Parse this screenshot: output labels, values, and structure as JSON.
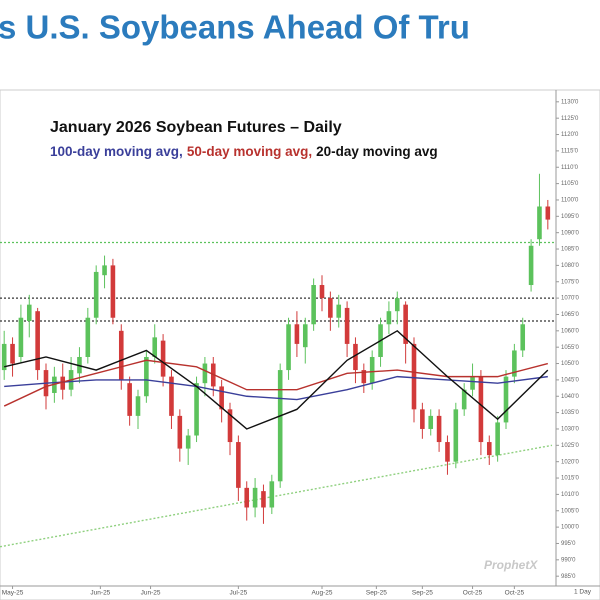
{
  "chart_data": {
    "type": "candlestick",
    "header": "s U.S. Soybeans Ahead Of Tru",
    "title": "January 2026 Soybean Futures – Daily",
    "watermark": "ProphetX",
    "interval_label": "1 Day",
    "up_color": "#5cc25c",
    "down_color": "#d23a3a",
    "xlim": [
      -0.5,
      65.5
    ],
    "ylim": [
      982,
      1133
    ],
    "xticks": [
      {
        "value": 1,
        "label": "May-25"
      },
      {
        "value": 11.5,
        "label": "Jun-25"
      },
      {
        "value": 17.5,
        "label": "Jun-25"
      },
      {
        "value": 28,
        "label": "Jul-25"
      },
      {
        "value": 38,
        "label": "Aug-25"
      },
      {
        "value": 44.5,
        "label": "Sep-25"
      },
      {
        "value": 50,
        "label": "Sep-25"
      },
      {
        "value": 56,
        "label": "Oct-25"
      },
      {
        "value": 61,
        "label": "Oct-25"
      }
    ],
    "yticks": [
      {
        "value": 985,
        "label": "985'0"
      },
      {
        "value": 990,
        "label": "990'0"
      },
      {
        "value": 995,
        "label": "995'0"
      },
      {
        "value": 1000,
        "label": "1000'0"
      },
      {
        "value": 1005,
        "label": "1005'0"
      },
      {
        "value": 1010,
        "label": "1010'0"
      },
      {
        "value": 1015,
        "label": "1015'0"
      },
      {
        "value": 1020,
        "label": "1020'0"
      },
      {
        "value": 1025,
        "label": "1025'0"
      },
      {
        "value": 1030,
        "label": "1030'0"
      },
      {
        "value": 1035,
        "label": "1035'0"
      },
      {
        "value": 1040,
        "label": "1040'0"
      },
      {
        "value": 1045,
        "label": "1045'0"
      },
      {
        "value": 1050,
        "label": "1050'0"
      },
      {
        "value": 1055,
        "label": "1055'0"
      },
      {
        "value": 1060,
        "label": "1060'0"
      },
      {
        "value": 1065,
        "label": "1065'0"
      },
      {
        "value": 1070,
        "label": "1070'0"
      },
      {
        "value": 1075,
        "label": "1075'0"
      },
      {
        "value": 1080,
        "label": "1080'0"
      },
      {
        "value": 1085,
        "label": "1085'0"
      },
      {
        "value": 1090,
        "label": "1090'0"
      },
      {
        "value": 1095,
        "label": "1095'0"
      },
      {
        "value": 1100,
        "label": "1100'0"
      },
      {
        "value": 1105,
        "label": "1105'0"
      },
      {
        "value": 1110,
        "label": "1110'0"
      },
      {
        "value": 1115,
        "label": "1115'0"
      },
      {
        "value": 1120,
        "label": "1120'0"
      },
      {
        "value": 1125,
        "label": "1125'0"
      },
      {
        "value": 1130,
        "label": "1130'0"
      }
    ],
    "open": [
      1048,
      1056,
      1052,
      1063,
      1066,
      1048,
      1041,
      1046,
      1042,
      1047,
      1052,
      1064,
      1077,
      1080,
      1060,
      1044,
      1034,
      1040,
      1052,
      1057,
      1046,
      1034,
      1024,
      1028,
      1044,
      1050,
      1043,
      1036,
      1026,
      1012,
      1006,
      1011,
      1006,
      1014,
      1048,
      1062,
      1055,
      1062,
      1074,
      1070,
      1064,
      1067,
      1056,
      1048,
      1044,
      1052,
      1062,
      1066,
      1068,
      1056,
      1036,
      1030,
      1034,
      1026,
      1020,
      1036,
      1042,
      1046,
      1026,
      1022,
      1032,
      1046,
      1054,
      1074,
      1088,
      1098
    ],
    "high": [
      1060,
      1058,
      1068,
      1071,
      1067,
      1050,
      1049,
      1050,
      1052,
      1055,
      1067,
      1080,
      1083,
      1082,
      1062,
      1046,
      1042,
      1054,
      1062,
      1059,
      1048,
      1036,
      1030,
      1046,
      1052,
      1052,
      1045,
      1038,
      1028,
      1014,
      1015,
      1013,
      1016,
      1050,
      1064,
      1066,
      1064,
      1076,
      1077,
      1072,
      1071,
      1069,
      1058,
      1050,
      1054,
      1064,
      1069,
      1072,
      1069,
      1058,
      1038,
      1036,
      1036,
      1028,
      1038,
      1044,
      1050,
      1048,
      1028,
      1034,
      1048,
      1056,
      1064,
      1088,
      1108,
      1100
    ],
    "low": [
      1045,
      1046,
      1050,
      1058,
      1045,
      1036,
      1038,
      1039,
      1040,
      1044,
      1050,
      1062,
      1073,
      1062,
      1042,
      1031,
      1030,
      1038,
      1050,
      1043,
      1030,
      1020,
      1019,
      1026,
      1040,
      1040,
      1032,
      1022,
      1008,
      1002,
      1003,
      1001,
      1004,
      1012,
      1045,
      1052,
      1050,
      1060,
      1066,
      1060,
      1061,
      1052,
      1044,
      1041,
      1042,
      1049,
      1059,
      1062,
      1050,
      1032,
      1027,
      1028,
      1023,
      1016,
      1018,
      1034,
      1040,
      1022,
      1019,
      1020,
      1030,
      1044,
      1052,
      1072,
      1086,
      1091
    ],
    "close": [
      1056,
      1050,
      1064,
      1068,
      1048,
      1040,
      1046,
      1042,
      1048,
      1052,
      1064,
      1078,
      1080,
      1064,
      1045,
      1034,
      1040,
      1052,
      1058,
      1046,
      1034,
      1024,
      1028,
      1044,
      1050,
      1043,
      1036,
      1026,
      1012,
      1006,
      1012,
      1006,
      1014,
      1048,
      1062,
      1056,
      1062,
      1074,
      1070,
      1064,
      1068,
      1056,
      1048,
      1044,
      1052,
      1062,
      1066,
      1070,
      1056,
      1036,
      1030,
      1034,
      1026,
      1020,
      1036,
      1042,
      1046,
      1026,
      1022,
      1032,
      1046,
      1054,
      1062,
      1086,
      1098,
      1094
    ],
    "lines": [
      {
        "name": "100-day moving avg,",
        "color": "#3a3f9a",
        "x": [
          0,
          5,
          11,
          17,
          23,
          29,
          35,
          41,
          47,
          53,
          59,
          65
        ],
        "values": [
          1043,
          1044,
          1045,
          1045,
          1043,
          1040,
          1039,
          1042,
          1046,
          1045,
          1044,
          1046
        ]
      },
      {
        "name": "50-day moving avg,",
        "color": "#b8322e",
        "x": [
          0,
          5,
          11,
          17,
          23,
          29,
          35,
          41,
          47,
          53,
          59,
          65
        ],
        "values": [
          1037,
          1043,
          1047,
          1051,
          1049,
          1042,
          1042,
          1047,
          1048,
          1046,
          1046,
          1050
        ]
      },
      {
        "name": "20-day moving avg",
        "color": "#111111",
        "x": [
          0,
          5,
          11,
          17,
          23,
          29,
          35,
          41,
          47,
          53,
          59,
          65
        ],
        "values": [
          1049,
          1052,
          1048,
          1054,
          1043,
          1030,
          1036,
          1051,
          1060,
          1046,
          1033,
          1048
        ]
      }
    ],
    "hlines": [
      {
        "value": 1087,
        "color": "#5cc25c"
      },
      {
        "value": 1070,
        "color": "#333333"
      },
      {
        "value": 1063,
        "color": "#333333"
      }
    ],
    "trendline": {
      "color": "#8fd07f",
      "values": [
        994,
        1025
      ]
    }
  }
}
